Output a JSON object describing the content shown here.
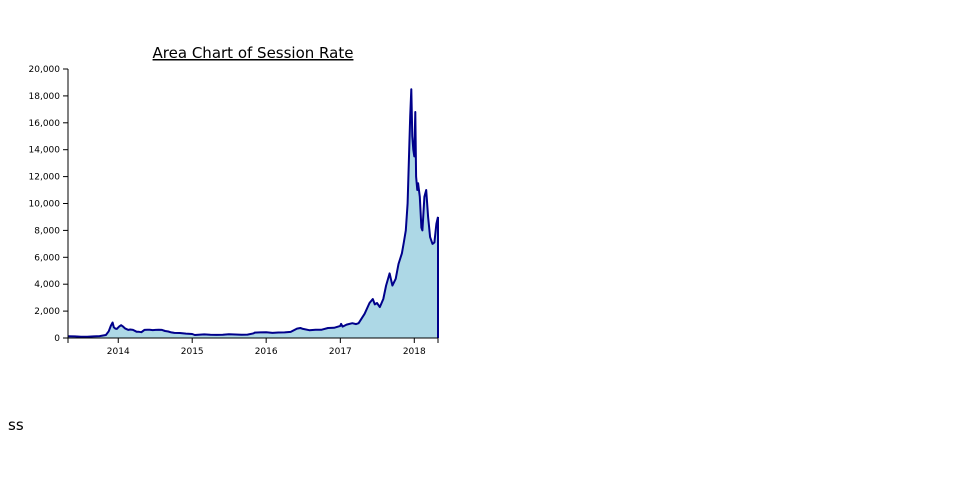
{
  "caption": "ss",
  "colors": {
    "line": "#00008b",
    "fill": "#add8e6",
    "axis": "#000000"
  },
  "chart_data": {
    "type": "area",
    "title": "Area Chart of Session Rate",
    "xlabel": "",
    "ylabel": "",
    "x_ticks": [
      "2014",
      "2015",
      "2016",
      "2017",
      "2018"
    ],
    "y_ticks": [
      "0",
      "2,000",
      "4,000",
      "6,000",
      "8,000",
      "10,000",
      "12,000",
      "14,000",
      "16,000",
      "18,000",
      "20,000"
    ],
    "xlim": [
      "2013-04-28",
      "2018-04-28"
    ],
    "ylim": [
      0,
      20000
    ],
    "grid": false,
    "series": [
      {
        "x": [
          "2013-04-28",
          "2013-06-01",
          "2013-07-01",
          "2013-08-01",
          "2013-09-01",
          "2013-10-01",
          "2013-11-01",
          "2013-11-15",
          "2013-11-25",
          "2013-12-04",
          "2013-12-10",
          "2013-12-18",
          "2013-12-25",
          "2014-01-05",
          "2014-01-15",
          "2014-01-25",
          "2014-02-05",
          "2014-02-20",
          "2014-03-01",
          "2014-03-15",
          "2014-04-01",
          "2014-04-10",
          "2014-04-25",
          "2014-05-10",
          "2014-05-25",
          "2014-06-05",
          "2014-06-20",
          "2014-07-05",
          "2014-07-20",
          "2014-08-05",
          "2014-08-20",
          "2014-09-05",
          "2014-09-20",
          "2014-10-05",
          "2014-11-01",
          "2014-12-01",
          "2015-01-01",
          "2015-01-14",
          "2015-02-01",
          "2015-03-01",
          "2015-04-01",
          "2015-05-01",
          "2015-06-01",
          "2015-07-01",
          "2015-08-01",
          "2015-09-01",
          "2015-10-01",
          "2015-11-01",
          "2015-11-05",
          "2015-12-01",
          "2016-01-01",
          "2016-02-01",
          "2016-03-01",
          "2016-04-01",
          "2016-05-01",
          "2016-06-01",
          "2016-06-18",
          "2016-07-01",
          "2016-08-01",
          "2016-09-01",
          "2016-10-01",
          "2016-11-01",
          "2016-12-01",
          "2017-01-01",
          "2017-01-05",
          "2017-01-12",
          "2017-02-01",
          "2017-03-01",
          "2017-03-20",
          "2017-04-01",
          "2017-05-01",
          "2017-05-25",
          "2017-06-10",
          "2017-06-20",
          "2017-07-01",
          "2017-07-15",
          "2017-08-01",
          "2017-08-15",
          "2017-09-01",
          "2017-09-15",
          "2017-10-01",
          "2017-10-15",
          "2017-11-01",
          "2017-11-10",
          "2017-11-20",
          "2017-11-29",
          "2017-12-07",
          "2017-12-12",
          "2017-12-17",
          "2017-12-22",
          "2017-12-27",
          "2018-01-01",
          "2018-01-06",
          "2018-01-10",
          "2018-01-16",
          "2018-01-20",
          "2018-01-28",
          "2018-02-05",
          "2018-02-10",
          "2018-02-20",
          "2018-03-01",
          "2018-03-10",
          "2018-03-20",
          "2018-04-01",
          "2018-04-10",
          "2018-04-20",
          "2018-04-28"
        ],
        "values": [
          130,
          120,
          90,
          100,
          120,
          140,
          220,
          500,
          900,
          1150,
          800,
          700,
          680,
          850,
          950,
          850,
          700,
          600,
          630,
          600,
          470,
          470,
          430,
          600,
          610,
          610,
          590,
          600,
          620,
          600,
          520,
          480,
          420,
          380,
          370,
          330,
          300,
          220,
          240,
          270,
          240,
          230,
          240,
          280,
          260,
          240,
          250,
          350,
          400,
          420,
          430,
          380,
          410,
          420,
          450,
          700,
          740,
          680,
          580,
          610,
          620,
          740,
          760,
          900,
          1050,
          850,
          1000,
          1100,
          1030,
          1100,
          1800,
          2600,
          2900,
          2500,
          2600,
          2300,
          2900,
          3900,
          4800,
          3900,
          4400,
          5500,
          6300,
          7100,
          8000,
          10000,
          14000,
          16500,
          18500,
          15000,
          14000,
          13500,
          16800,
          12000,
          11000,
          11500,
          10500,
          8200,
          8000,
          10500,
          11000,
          9000,
          7500,
          7000,
          7100,
          8500,
          9000
        ]
      }
    ]
  }
}
